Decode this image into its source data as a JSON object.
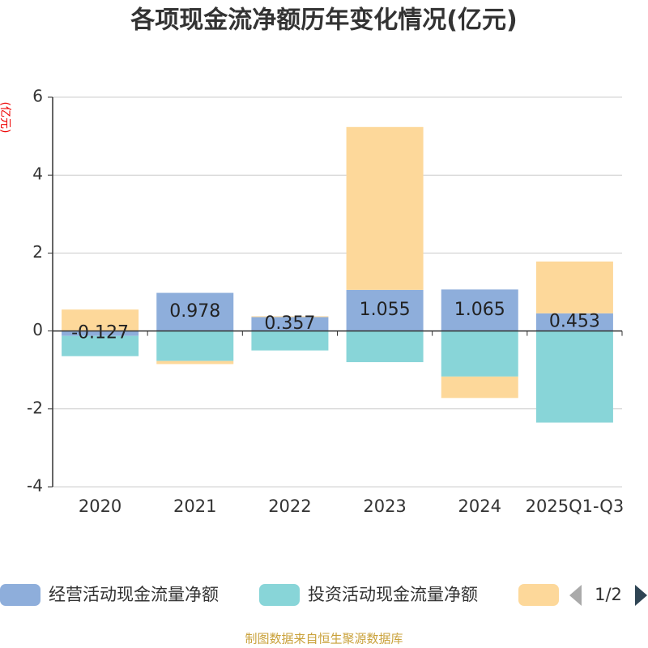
{
  "chart_data": {
    "type": "bar",
    "stacked": true,
    "title": "各项现金流净额历年变化情况(亿元)",
    "y_label": "(亿元)",
    "categories": [
      "2020",
      "2021",
      "2022",
      "2023",
      "2024",
      "2025Q1-Q3"
    ],
    "series": [
      {
        "name": "经营活动现金流量净额",
        "color": "#8eaedb",
        "values": [
          -0.127,
          0.978,
          0.357,
          1.055,
          1.065,
          0.453
        ],
        "show_labels": true
      },
      {
        "name": "投资活动现金流量净额",
        "color": "#88d5d8",
        "values": [
          -0.52,
          -0.77,
          -0.5,
          -0.8,
          -1.17,
          -2.35
        ]
      },
      {
        "color": "#fdd89a",
        "values": [
          0.55,
          -0.08,
          0.02,
          4.18,
          -0.55,
          1.33
        ]
      }
    ],
    "ylim": [
      -4,
      6
    ],
    "yticks": [
      -4,
      -2,
      0,
      2,
      4,
      6
    ],
    "grid": true,
    "legend_page": "1/2",
    "source": "制图数据来自恒生聚源数据库"
  }
}
